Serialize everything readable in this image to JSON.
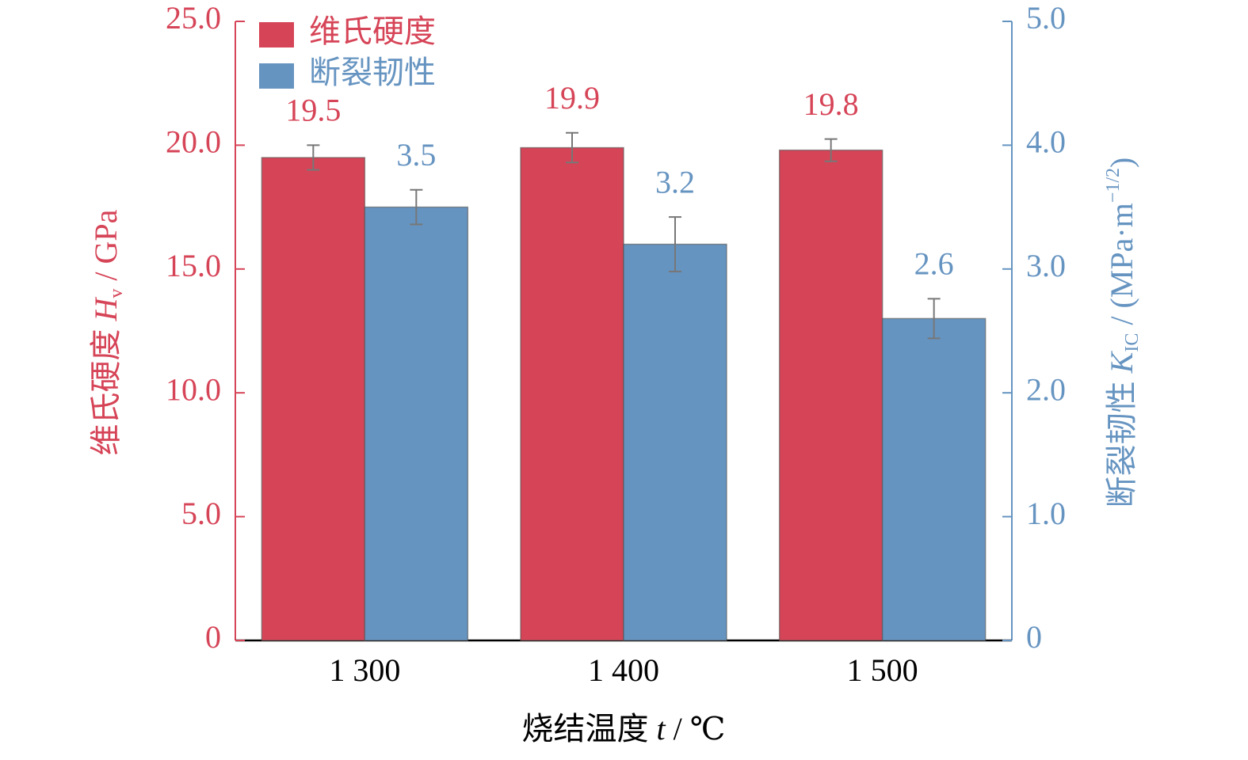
{
  "chart_data": {
    "type": "bar",
    "x_label": {
      "text": "烧结温度 ",
      "symbol": "t",
      "unit": " / ℃"
    },
    "y_label": {
      "text": "维氏硬度 ",
      "symbol": "H",
      "sub": "v",
      "unit": " / GPa"
    },
    "y2_label": {
      "text": "断裂韧性 ",
      "symbol": "K",
      "sub": "IC",
      "unit": " / (MPa·m",
      "sup": "−1/2",
      "end": ")"
    },
    "categories": [
      "1 300",
      "1 400",
      "1 500"
    ],
    "series": [
      {
        "name": "维氏硬度",
        "color": "#d64457",
        "values": [
          19.5,
          19.9,
          19.8
        ],
        "errors": [
          0.5,
          0.6,
          0.45
        ]
      },
      {
        "name": "断裂韧性",
        "color": "#6694c1",
        "axis": "y2",
        "values": [
          3.5,
          3.2,
          2.6
        ],
        "errors": [
          0.14,
          0.22,
          0.16
        ]
      }
    ],
    "ylim": [
      0,
      25
    ],
    "yticks": [
      0,
      {
        "value": 5,
        "label": "5.0"
      },
      {
        "value": 10,
        "label": "10.0"
      },
      {
        "value": 15,
        "label": "15.0"
      },
      {
        "value": 20,
        "label": "20.0"
      },
      {
        "value": 25,
        "label": "25.0"
      }
    ],
    "y2lim": [
      0,
      5
    ],
    "y2ticks": [
      0,
      {
        "value": 1,
        "label": "1.0"
      },
      {
        "value": 2,
        "label": "2.0"
      },
      {
        "value": 3,
        "label": "3.0"
      },
      {
        "value": 4,
        "label": "4.0"
      },
      {
        "value": 5,
        "label": "5.0"
      }
    ],
    "legend": "upper-left",
    "grid": false
  }
}
